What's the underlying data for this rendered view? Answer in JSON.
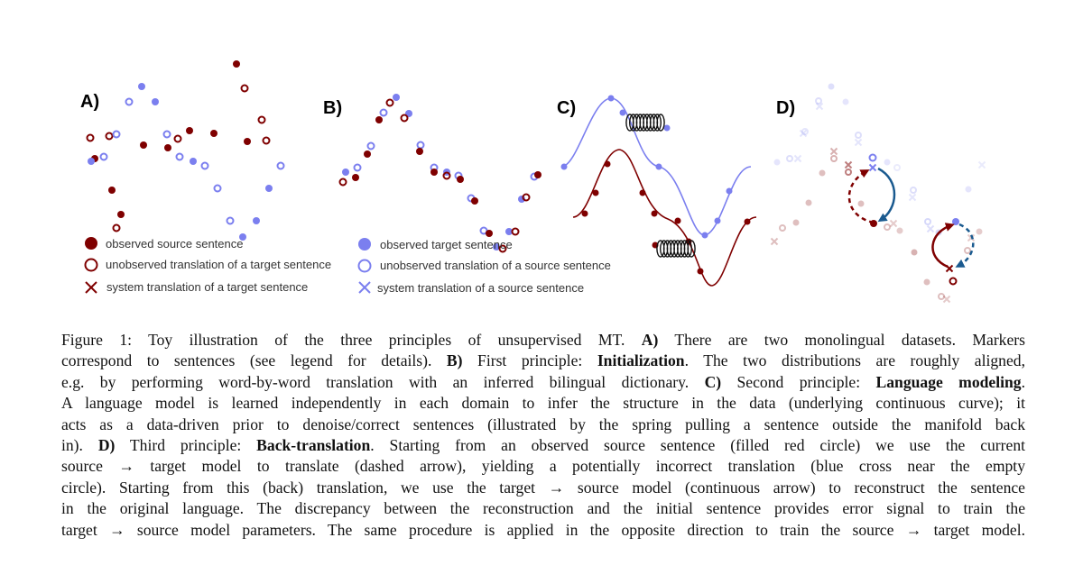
{
  "panels": {
    "a": "A)",
    "b": "B)",
    "c": "C)",
    "d": "D)"
  },
  "colors": {
    "source": "#7f0000",
    "target": "#7b7fef",
    "arrow_blue": "#1a5a8f"
  },
  "legend": {
    "left": [
      {
        "icon": "filled-circle-red",
        "text": "observed source sentence"
      },
      {
        "icon": "open-circle-red",
        "text": "unobserved translation of a target sentence"
      },
      {
        "icon": "cross-red",
        "text": "system translation of a target sentence"
      }
    ],
    "right": [
      {
        "icon": "filled-circle-blue",
        "text": "observed target sentence"
      },
      {
        "icon": "open-circle-blue",
        "text": "unobserved  translation of a source sentence"
      },
      {
        "icon": "cross-blue",
        "text": "system translation of a source sentence"
      }
    ]
  },
  "caption": {
    "lines": [
      [
        {
          "t": "Figure 1:  Toy illustration of the three principles of unsupervised MT. "
        },
        {
          "t": "A)",
          "b": true
        },
        {
          "t": " There are two monolingual datasets.  Markers"
        }
      ],
      [
        {
          "t": "correspond to sentences (see legend for details). "
        },
        {
          "t": "B)",
          "b": true
        },
        {
          "t": " First principle: "
        },
        {
          "t": "Initialization",
          "b": true
        },
        {
          "t": ". The two distributions are roughly aligned,"
        }
      ],
      [
        {
          "t": "e.g. by performing word-by-word translation with an inferred bilingual dictionary. "
        },
        {
          "t": "C)",
          "b": true
        },
        {
          "t": " Second principle: "
        },
        {
          "t": "Language modeling",
          "b": true
        },
        {
          "t": "."
        }
      ],
      [
        {
          "t": "A language model is learned independently in each domain to infer the structure in the data (underlying continuous curve); it"
        }
      ],
      [
        {
          "t": "acts as a data-driven prior to denoise/correct sentences (illustrated by the spring pulling a sentence outside the manifold back"
        }
      ],
      [
        {
          "t": "in).  "
        },
        {
          "t": "D)",
          "b": true
        },
        {
          "t": " Third principle: "
        },
        {
          "t": "Back-translation",
          "b": true
        },
        {
          "t": ".  Starting from an observed source sentence (filled red circle) we use the current"
        }
      ],
      [
        {
          "t": "source → target model to translate (dashed arrow), yielding a potentially incorrect translation (blue cross near the empty"
        }
      ],
      [
        {
          "t": "circle). Starting from this (back) translation, we use the target → source model (continuous arrow) to reconstruct the sentence"
        }
      ],
      [
        {
          "t": "in the original language. The discrepancy between the reconstruction and the initial sentence provides error signal to train the"
        }
      ],
      [
        {
          "t": "target → source model parameters. The same procedure is applied in the opposite direction to train the source → target model."
        }
      ]
    ]
  }
}
